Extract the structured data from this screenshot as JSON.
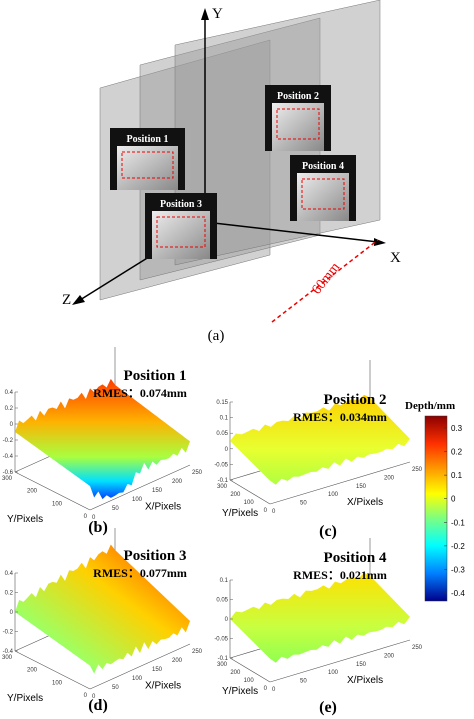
{
  "diagram": {
    "axes": {
      "y": "Y",
      "x": "X",
      "z": "Z"
    },
    "distance": "60mm",
    "positions": [
      "Position 1",
      "Position 2",
      "Position 3",
      "Position 4"
    ],
    "caption": "(a)"
  },
  "panels": [
    {
      "title": "Position 1",
      "rmes": "RMES：0.074mm",
      "zticks": [
        0.4,
        0.2,
        0,
        -0.2,
        -0.4,
        -0.6
      ],
      "yticks": [
        300,
        200,
        100,
        0
      ],
      "xticks": [
        0,
        50,
        100,
        150,
        200,
        250
      ],
      "ylabel": "Y/Pixels",
      "xlabel": "X/Pixels",
      "caption": "(b)"
    },
    {
      "title": "Position 2",
      "rmes": "RMES：0.034mm",
      "zticks": [
        0.15,
        0.1,
        0.05,
        0,
        -0.05,
        -0.1
      ],
      "yticks": [
        300,
        200,
        100,
        0
      ],
      "xticks": [
        0,
        50,
        100,
        150,
        200,
        250
      ],
      "ylabel": "Y/Pixels",
      "xlabel": "X/Pixels",
      "caption": "(c)"
    },
    {
      "title": "Position 3",
      "rmes": "RMES：0.077mm",
      "zticks": [
        0.4,
        0.2,
        0,
        -0.2,
        -0.4
      ],
      "yticks": [
        300,
        200,
        100,
        0
      ],
      "xticks": [
        0,
        50,
        100,
        150,
        200,
        250
      ],
      "ylabel": "Y/Pixels",
      "xlabel": "X/Pixels",
      "caption": "(d)"
    },
    {
      "title": "Position 4",
      "rmes": "RMES：0.021mm",
      "zticks": [
        0.1,
        0.05,
        0,
        -0.05,
        -0.1
      ],
      "yticks": [
        300,
        200,
        100,
        0
      ],
      "xticks": [
        0,
        50,
        100,
        150,
        200,
        250
      ],
      "ylabel": "Y/Pixels",
      "xlabel": "X/Pixels",
      "caption": "(e)"
    }
  ],
  "colorbar": {
    "label": "Depth/mm",
    "ticks": [
      0.3,
      0.2,
      0.1,
      0,
      -0.1,
      -0.2,
      -0.3,
      -0.4
    ]
  }
}
